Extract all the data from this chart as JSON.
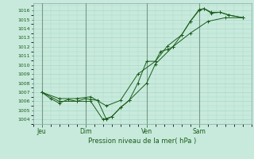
{
  "title": "Pression niveau de la mer( hPa )",
  "bg_color": "#c8eadc",
  "grid_color": "#a8d8c8",
  "line_color": "#1a5c1a",
  "ylim": [
    1003.5,
    1016.8
  ],
  "yticks": [
    1004,
    1005,
    1006,
    1007,
    1008,
    1009,
    1010,
    1011,
    1012,
    1013,
    1014,
    1015,
    1016
  ],
  "xlim": [
    0,
    12.5
  ],
  "day_labels": [
    "Jeu",
    "Dim",
    "Ven",
    "Sam"
  ],
  "day_positions": [
    0.5,
    3.0,
    6.5,
    9.5
  ],
  "day_vlines": [
    0.5,
    3.0,
    6.5,
    9.5
  ],
  "series_mean": [
    [
      0.5,
      1007.0
    ],
    [
      1.0,
      1006.3
    ],
    [
      1.5,
      1005.8
    ],
    [
      2.0,
      1006.2
    ],
    [
      2.5,
      1006.0
    ],
    [
      3.0,
      1006.3
    ],
    [
      3.3,
      1006.2
    ],
    [
      3.7,
      1006.1
    ],
    [
      4.2,
      1004.0
    ],
    [
      4.5,
      1004.3
    ],
    [
      5.0,
      1005.3
    ],
    [
      5.5,
      1006.1
    ],
    [
      6.0,
      1008.0
    ],
    [
      6.5,
      1010.4
    ],
    [
      7.0,
      1010.4
    ],
    [
      7.3,
      1011.5
    ],
    [
      7.7,
      1011.7
    ],
    [
      8.0,
      1012.0
    ],
    [
      8.5,
      1013.3
    ],
    [
      9.0,
      1014.8
    ],
    [
      9.5,
      1016.0
    ],
    [
      9.8,
      1016.2
    ],
    [
      10.2,
      1015.7
    ],
    [
      10.7,
      1015.8
    ],
    [
      11.2,
      1015.5
    ],
    [
      12.0,
      1015.2
    ]
  ],
  "series_max": [
    [
      0.5,
      1007.0
    ],
    [
      1.5,
      1006.3
    ],
    [
      2.5,
      1006.3
    ],
    [
      3.3,
      1006.5
    ],
    [
      4.2,
      1005.5
    ],
    [
      5.0,
      1006.1
    ],
    [
      6.0,
      1009.0
    ],
    [
      7.0,
      1010.4
    ],
    [
      7.7,
      1012.1
    ],
    [
      8.5,
      1013.3
    ],
    [
      9.0,
      1014.8
    ],
    [
      9.5,
      1016.1
    ],
    [
      9.8,
      1016.2
    ],
    [
      10.2,
      1015.8
    ],
    [
      10.7,
      1015.8
    ],
    [
      11.2,
      1015.5
    ],
    [
      12.0,
      1015.2
    ]
  ],
  "series_min": [
    [
      0.5,
      1007.0
    ],
    [
      1.5,
      1006.0
    ],
    [
      2.5,
      1006.0
    ],
    [
      3.0,
      1006.0
    ],
    [
      3.3,
      1006.0
    ],
    [
      4.0,
      1004.0
    ],
    [
      4.5,
      1004.3
    ],
    [
      5.0,
      1005.3
    ],
    [
      5.5,
      1006.1
    ],
    [
      6.5,
      1008.0
    ],
    [
      7.0,
      1010.1
    ],
    [
      8.0,
      1012.0
    ],
    [
      9.0,
      1013.5
    ],
    [
      10.0,
      1014.8
    ],
    [
      11.0,
      1015.2
    ],
    [
      12.0,
      1015.2
    ]
  ]
}
